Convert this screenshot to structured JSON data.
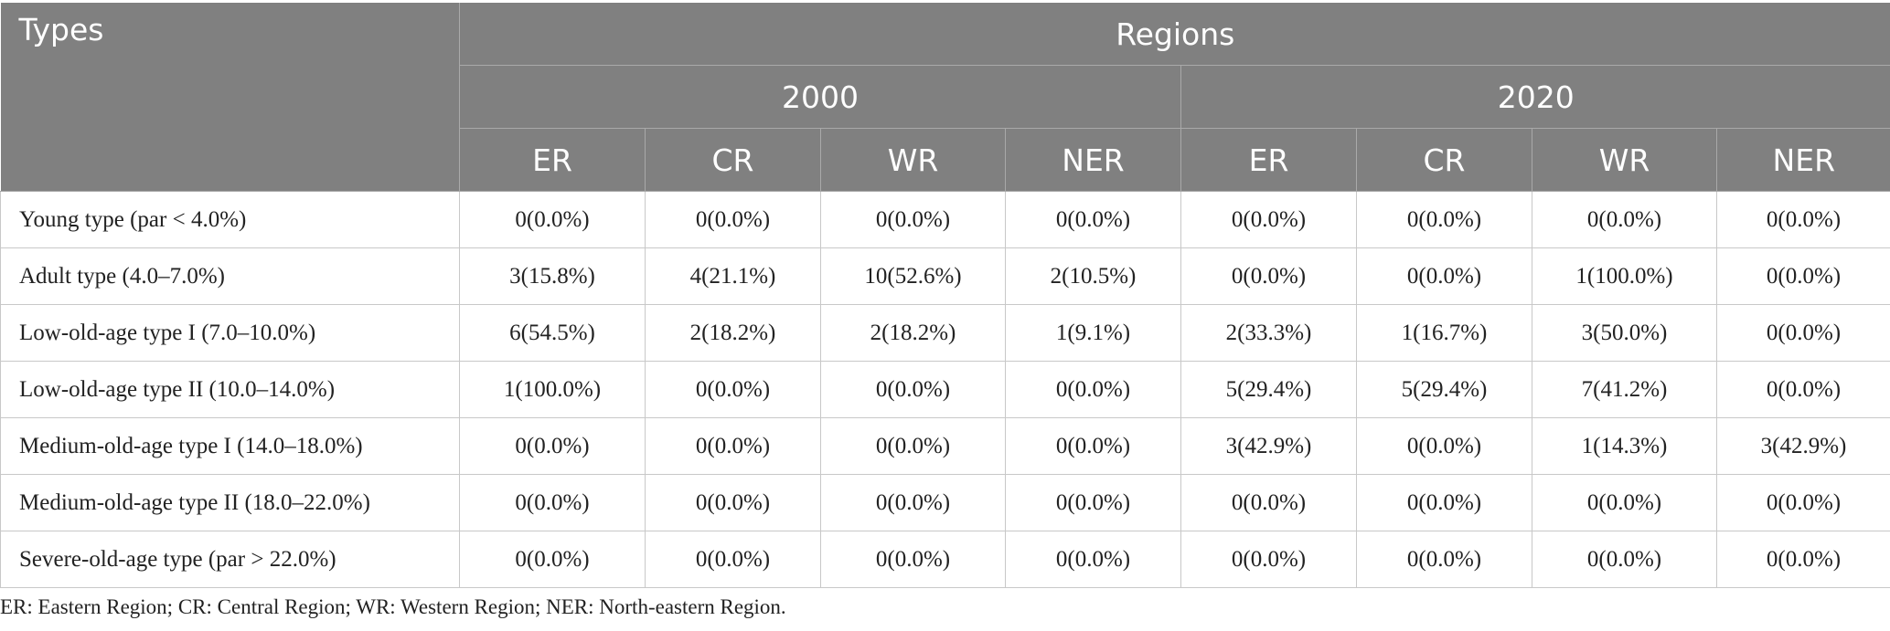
{
  "table": {
    "header": {
      "types": "Types",
      "regions": "Regions",
      "years": [
        "2000",
        "2020"
      ],
      "subregions": [
        "ER",
        "CR",
        "WR",
        "NER",
        "ER",
        "CR",
        "WR",
        "NER"
      ]
    },
    "rows": [
      {
        "type": "Young type (par < 4.0%)",
        "values": [
          "0(0.0%)",
          "0(0.0%)",
          "0(0.0%)",
          "0(0.0%)",
          "0(0.0%)",
          "0(0.0%)",
          "0(0.0%)",
          "0(0.0%)"
        ]
      },
      {
        "type": "Adult type (4.0–7.0%)",
        "values": [
          "3(15.8%)",
          "4(21.1%)",
          "10(52.6%)",
          "2(10.5%)",
          "0(0.0%)",
          "0(0.0%)",
          "1(100.0%)",
          "0(0.0%)"
        ]
      },
      {
        "type": "Low-old-age type I (7.0–10.0%)",
        "values": [
          "6(54.5%)",
          "2(18.2%)",
          "2(18.2%)",
          "1(9.1%)",
          "2(33.3%)",
          "1(16.7%)",
          "3(50.0%)",
          "0(0.0%)"
        ]
      },
      {
        "type": "Low-old-age type II (10.0–14.0%)",
        "values": [
          "1(100.0%)",
          "0(0.0%)",
          "0(0.0%)",
          "0(0.0%)",
          "5(29.4%)",
          "5(29.4%)",
          "7(41.2%)",
          "0(0.0%)"
        ]
      },
      {
        "type": "Medium-old-age type I (14.0–18.0%)",
        "values": [
          "0(0.0%)",
          "0(0.0%)",
          "0(0.0%)",
          "0(0.0%)",
          "3(42.9%)",
          "0(0.0%)",
          "1(14.3%)",
          "3(42.9%)"
        ]
      },
      {
        "type": "Medium-old-age type II (18.0–22.0%)",
        "values": [
          "0(0.0%)",
          "0(0.0%)",
          "0(0.0%)",
          "0(0.0%)",
          "0(0.0%)",
          "0(0.0%)",
          "0(0.0%)",
          "0(0.0%)"
        ]
      },
      {
        "type": "Severe-old-age type (par > 22.0%)",
        "values": [
          "0(0.0%)",
          "0(0.0%)",
          "0(0.0%)",
          "0(0.0%)",
          "0(0.0%)",
          "0(0.0%)",
          "0(0.0%)",
          "0(0.0%)"
        ]
      }
    ]
  },
  "footnote": "ER: Eastern Region; CR: Central Region; WR: Western Region; NER: North-eastern Region.",
  "colors": {
    "header_bg": "#808080",
    "header_text": "#ffffff",
    "grid": "#c8c8c8"
  }
}
